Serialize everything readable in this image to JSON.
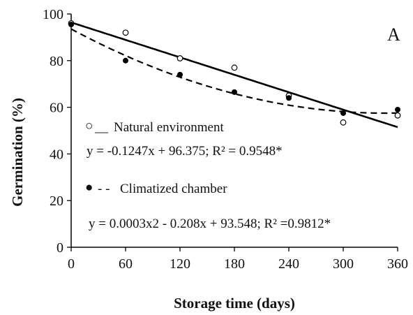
{
  "chart_data": {
    "type": "scatter",
    "panel_label": "A",
    "xlabel": "Storage time (days)",
    "ylabel": "Germination (%)",
    "xlim": [
      0,
      360
    ],
    "ylim": [
      0,
      100
    ],
    "xticks": [
      0,
      60,
      120,
      180,
      240,
      300,
      360
    ],
    "yticks": [
      0,
      20,
      40,
      60,
      80,
      100
    ],
    "grid": false,
    "series": [
      {
        "name": "Natural environment",
        "marker": "open-circle",
        "line_style": "solid",
        "x": [
          0,
          60,
          120,
          180,
          240,
          300,
          360
        ],
        "y": [
          96,
          92,
          81,
          77,
          65,
          53.5,
          56.5
        ],
        "fit": {
          "type": "linear",
          "a": -0.1247,
          "b": 96.375
        },
        "equation": "y = -0.1247x + 96.375; R² = 0.9548*"
      },
      {
        "name": "Climatized chamber",
        "marker": "filled-circle",
        "line_style": "dashed",
        "x": [
          0,
          60,
          120,
          180,
          240,
          300,
          360
        ],
        "y": [
          95.5,
          80,
          74,
          66.5,
          64,
          57.5,
          59
        ],
        "fit": {
          "type": "quadratic",
          "c2": 0.0003,
          "c1": -0.208,
          "c0": 93.548
        },
        "equation": "y = 0.0003x2 - 0.208x + 93.548; R² =0.9812*"
      }
    ],
    "legend": [
      {
        "symbol": "○",
        "line_text": "__",
        "text": "Natural environment"
      },
      {
        "symbol": "●",
        "line_text": "- -",
        "text": "Climatized chamber"
      }
    ],
    "colors": {
      "axis": "#000000",
      "text": "#111111",
      "natural": "#000000",
      "climatized": "#000000"
    }
  }
}
